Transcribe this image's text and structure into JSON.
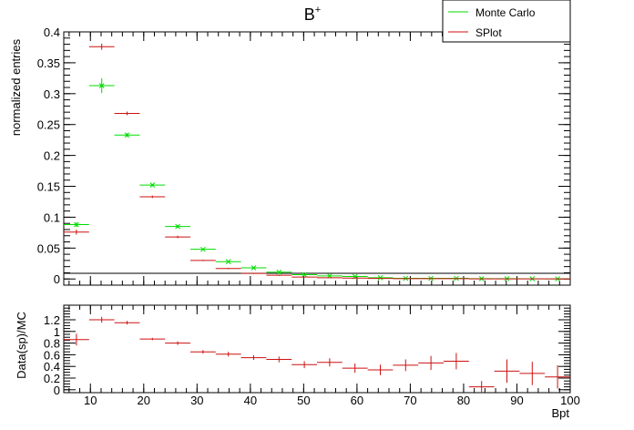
{
  "chart_data": [
    {
      "type": "scatter",
      "title": "B",
      "title_superscript": "+",
      "ylabel": "normalized entries",
      "xlim": [
        5,
        100
      ],
      "ylim": [
        -0.01,
        0.4
      ],
      "yticks": [
        "0",
        "0.05",
        "0.1",
        "0.15",
        "0.2",
        "0.25",
        "0.3",
        "0.35",
        "0.4"
      ],
      "legend": {
        "position": "top-right"
      },
      "series": [
        {
          "name": "Monte Carlo",
          "color": "#00dd00",
          "marker": "x",
          "points": [
            {
              "x": 7.375,
              "y": 0.088,
              "xerr": 2.375,
              "yerr": 0.004
            },
            {
              "x": 12.125,
              "y": 0.313,
              "xerr": 2.375,
              "yerr": 0.012
            },
            {
              "x": 16.875,
              "y": 0.233,
              "xerr": 2.375,
              "yerr": 0.003
            },
            {
              "x": 21.625,
              "y": 0.152,
              "xerr": 2.375,
              "yerr": 0.002
            },
            {
              "x": 26.375,
              "y": 0.085,
              "xerr": 2.375,
              "yerr": 0.002
            },
            {
              "x": 31.125,
              "y": 0.048,
              "xerr": 2.375,
              "yerr": 0.001
            },
            {
              "x": 35.875,
              "y": 0.028,
              "xerr": 2.375,
              "yerr": 0.001
            },
            {
              "x": 40.625,
              "y": 0.018,
              "xerr": 2.375,
              "yerr": 0.001
            },
            {
              "x": 45.375,
              "y": 0.011,
              "xerr": 2.375,
              "yerr": 0.001
            },
            {
              "x": 50.125,
              "y": 0.007,
              "xerr": 2.375,
              "yerr": 0.001
            },
            {
              "x": 54.875,
              "y": 0.005,
              "xerr": 2.375,
              "yerr": 0.001
            },
            {
              "x": 59.625,
              "y": 0.004,
              "xerr": 2.375,
              "yerr": 0.001
            },
            {
              "x": 64.375,
              "y": 0.002,
              "xerr": 2.375,
              "yerr": 0.0005
            },
            {
              "x": 69.125,
              "y": 0.001,
              "xerr": 2.375,
              "yerr": 0.0005
            },
            {
              "x": 73.875,
              "y": 0.001,
              "xerr": 2.375,
              "yerr": 0.0005
            },
            {
              "x": 78.625,
              "y": 0.001,
              "xerr": 2.375,
              "yerr": 0.0005
            },
            {
              "x": 83.375,
              "y": 0.0005,
              "xerr": 2.375,
              "yerr": 0.0003
            },
            {
              "x": 88.125,
              "y": 0.0005,
              "xerr": 2.375,
              "yerr": 0.0003
            },
            {
              "x": 92.875,
              "y": 0.0003,
              "xerr": 2.375,
              "yerr": 0.0002
            },
            {
              "x": 97.625,
              "y": 0.0002,
              "xerr": 2.375,
              "yerr": 0.0002
            }
          ]
        },
        {
          "name": "SPlot",
          "color": "#cc1111",
          "marker": "+",
          "points": [
            {
              "x": 7.375,
              "y": 0.076,
              "xerr": 2.375,
              "yerr": 0.004
            },
            {
              "x": 12.125,
              "y": 0.376,
              "xerr": 2.375,
              "yerr": 0.005
            },
            {
              "x": 16.875,
              "y": 0.268,
              "xerr": 2.375,
              "yerr": 0.003
            },
            {
              "x": 21.625,
              "y": 0.133,
              "xerr": 2.375,
              "yerr": 0.002
            },
            {
              "x": 26.375,
              "y": 0.068,
              "xerr": 2.375,
              "yerr": 0.002
            },
            {
              "x": 31.125,
              "y": 0.03,
              "xerr": 2.375,
              "yerr": 0.001
            },
            {
              "x": 35.875,
              "y": 0.017,
              "xerr": 2.375,
              "yerr": 0.001
            },
            {
              "x": 40.625,
              "y": 0.009,
              "xerr": 2.375,
              "yerr": 0.001
            },
            {
              "x": 45.375,
              "y": 0.006,
              "xerr": 2.375,
              "yerr": 0.001
            },
            {
              "x": 50.125,
              "y": 0.003,
              "xerr": 2.375,
              "yerr": 0.0005
            },
            {
              "x": 54.875,
              "y": 0.002,
              "xerr": 2.375,
              "yerr": 0.0005
            },
            {
              "x": 59.625,
              "y": 0.0015,
              "xerr": 2.375,
              "yerr": 0.0005
            },
            {
              "x": 64.375,
              "y": 0.0008,
              "xerr": 2.375,
              "yerr": 0.0003
            },
            {
              "x": 69.125,
              "y": 0.0005,
              "xerr": 2.375,
              "yerr": 0.0003
            },
            {
              "x": 73.875,
              "y": 0.0005,
              "xerr": 2.375,
              "yerr": 0.0003
            },
            {
              "x": 78.625,
              "y": 0.0005,
              "xerr": 2.375,
              "yerr": 0.0003
            },
            {
              "x": 83.375,
              "y": 0.0001,
              "xerr": 2.375,
              "yerr": 0.0001
            },
            {
              "x": 88.125,
              "y": 0.0002,
              "xerr": 2.375,
              "yerr": 0.0001
            },
            {
              "x": 92.875,
              "y": 0.0001,
              "xerr": 2.375,
              "yerr": 0.0001
            },
            {
              "x": 97.625,
              "y": 0.0001,
              "xerr": 2.375,
              "yerr": 0.0001
            }
          ]
        }
      ]
    },
    {
      "type": "scatter",
      "xlabel": "Bpt",
      "ylabel": "Data(sp)/MC",
      "xlim": [
        5,
        100
      ],
      "ylim": [
        -0.05,
        1.45
      ],
      "xticks": [
        "10",
        "20",
        "30",
        "40",
        "50",
        "60",
        "70",
        "80",
        "90",
        "100"
      ],
      "yticks": [
        "0",
        "0.2",
        "0.4",
        "0.6",
        "0.8",
        "1",
        "1.2"
      ],
      "series": [
        {
          "name": "",
          "color": "#cc1111",
          "marker": "+",
          "points": [
            {
              "x": 7.375,
              "y": 0.86,
              "xerr": 2.375,
              "yerr": 0.1
            },
            {
              "x": 12.125,
              "y": 1.2,
              "xerr": 2.375,
              "yerr": 0.05
            },
            {
              "x": 16.875,
              "y": 1.15,
              "xerr": 2.375,
              "yerr": 0.03
            },
            {
              "x": 21.625,
              "y": 0.87,
              "xerr": 2.375,
              "yerr": 0.02
            },
            {
              "x": 26.375,
              "y": 0.8,
              "xerr": 2.375,
              "yerr": 0.03
            },
            {
              "x": 31.125,
              "y": 0.65,
              "xerr": 2.375,
              "yerr": 0.03
            },
            {
              "x": 35.875,
              "y": 0.61,
              "xerr": 2.375,
              "yerr": 0.04
            },
            {
              "x": 40.625,
              "y": 0.55,
              "xerr": 2.375,
              "yerr": 0.04
            },
            {
              "x": 45.375,
              "y": 0.52,
              "xerr": 2.375,
              "yerr": 0.05
            },
            {
              "x": 50.125,
              "y": 0.43,
              "xerr": 2.375,
              "yerr": 0.06
            },
            {
              "x": 54.875,
              "y": 0.47,
              "xerr": 2.375,
              "yerr": 0.07
            },
            {
              "x": 59.625,
              "y": 0.37,
              "xerr": 2.375,
              "yerr": 0.08
            },
            {
              "x": 64.375,
              "y": 0.34,
              "xerr": 2.375,
              "yerr": 0.09
            },
            {
              "x": 69.125,
              "y": 0.42,
              "xerr": 2.375,
              "yerr": 0.1
            },
            {
              "x": 73.875,
              "y": 0.46,
              "xerr": 2.375,
              "yerr": 0.12
            },
            {
              "x": 78.625,
              "y": 0.49,
              "xerr": 2.375,
              "yerr": 0.14
            },
            {
              "x": 83.375,
              "y": 0.05,
              "xerr": 2.375,
              "yerr": 0.1
            },
            {
              "x": 88.125,
              "y": 0.32,
              "xerr": 2.375,
              "yerr": 0.2
            },
            {
              "x": 92.875,
              "y": 0.28,
              "xerr": 2.375,
              "yerr": 0.2
            },
            {
              "x": 97.625,
              "y": 0.22,
              "xerr": 2.375,
              "yerr": 0.2
            }
          ]
        }
      ]
    }
  ]
}
